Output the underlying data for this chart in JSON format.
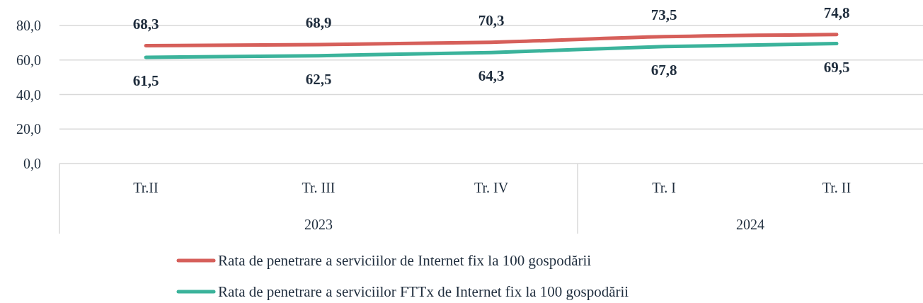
{
  "chart_data": {
    "type": "line",
    "categories": [
      "Tr.II",
      "Tr. III",
      "Tr. IV",
      "Tr. I",
      "Tr. II"
    ],
    "series": [
      {
        "name": "Rata de penetrare a serviciilor de Internet fix la 100 gospodării",
        "color": "#d65f5a",
        "values": [
          68.3,
          68.9,
          70.3,
          73.5,
          74.8
        ],
        "value_labels": [
          "68,3",
          "68,9",
          "70,3",
          "73,5",
          "74,8"
        ]
      },
      {
        "name": "Rata de penetrare a serviciilor FTTx de Internet fix la 100 gospodării",
        "color": "#3bb39b",
        "values": [
          61.5,
          62.5,
          64.3,
          67.8,
          69.5
        ],
        "value_labels": [
          "61,5",
          "62,5",
          "64,3",
          "67,8",
          "69,5"
        ]
      }
    ],
    "ylim": [
      0,
      80
    ],
    "yticks": [
      {
        "value": 0,
        "label": "0,0"
      },
      {
        "value": 20,
        "label": "20,0"
      },
      {
        "value": 40,
        "label": "40,0"
      },
      {
        "value": 60,
        "label": "60,0"
      },
      {
        "value": 80,
        "label": "80,0"
      }
    ],
    "grid": "y",
    "legend": "bottom",
    "marker": "none",
    "line_style": "solid",
    "annotations": [
      "2023",
      "2024"
    ]
  }
}
